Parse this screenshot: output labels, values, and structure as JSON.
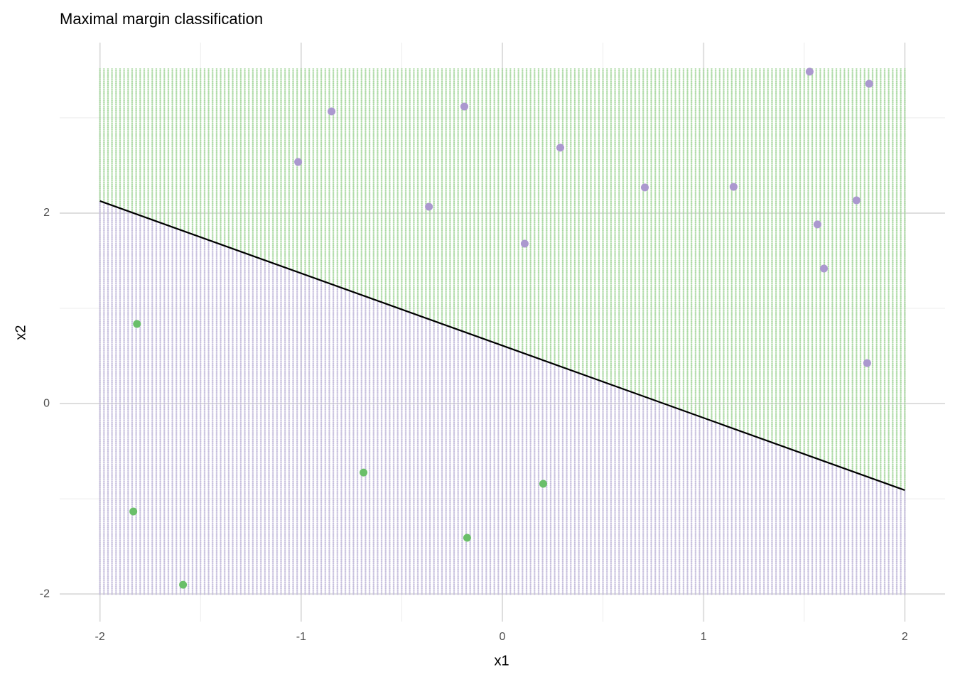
{
  "chart_data": {
    "type": "scatter",
    "title": "Maximal margin classification",
    "x_label": "x1",
    "y_label": "x2",
    "xlim": [
      -2.2,
      2.2
    ],
    "ylim": [
      -2.29,
      3.79
    ],
    "xticks": [
      -2,
      -1,
      0,
      1,
      2
    ],
    "yticks": [
      -2,
      0,
      2
    ],
    "grid": true,
    "series": [
      {
        "color": "#ab98cf",
        "x": [
          1.527,
          1.823,
          -0.849,
          -0.189,
          -1.015,
          0.288,
          0.708,
          1.149,
          -0.365,
          1.76,
          1.566,
          0.111,
          1.598,
          1.813
        ],
        "values": [
          3.485,
          3.358,
          3.067,
          3.119,
          2.537,
          2.687,
          2.269,
          2.276,
          2.067,
          2.134,
          1.881,
          1.679,
          1.418,
          0.425
        ]
      },
      {
        "color": "#6abf69",
        "x": [
          -1.816,
          -1.834,
          -1.587,
          -0.69,
          0.203,
          -0.175
        ],
        "values": [
          0.836,
          -1.134,
          -1.903,
          -0.724,
          -0.843,
          -1.41
        ]
      }
    ],
    "decision_line": {
      "x": [
        -2,
        2
      ],
      "values": [
        2.127,
        -0.91
      ],
      "color": "#000000"
    },
    "region": {
      "xlim": [
        -2,
        2
      ],
      "ylim": [
        -2,
        3.51
      ],
      "above_color": "#a8d8a0",
      "below_color": "#c4bcdc"
    }
  }
}
